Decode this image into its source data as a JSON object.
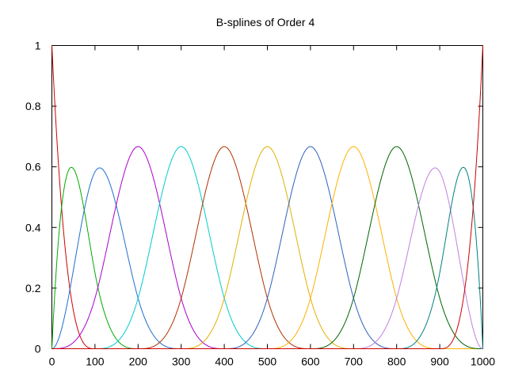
{
  "chart_data": {
    "type": "line",
    "title": "B-splines of Order 4",
    "xlabel": "",
    "ylabel": "",
    "xlim": [
      0,
      1000
    ],
    "ylim": [
      0,
      1
    ],
    "grid": false,
    "x_ticks": [
      "0",
      "100",
      "200",
      "300",
      "400",
      "500",
      "600",
      "700",
      "800",
      "900",
      "1000"
    ],
    "y_ticks": [
      "0",
      "0.2",
      "0.4",
      "0.6",
      "0.8",
      "1"
    ],
    "knots": [
      0,
      0,
      0,
      0,
      100,
      200,
      300,
      400,
      500,
      600,
      700,
      800,
      900,
      1000,
      1000,
      1000,
      1000
    ],
    "order": 4,
    "series": [
      {
        "peak_x": 0,
        "peak_y": 1.0,
        "color": "#cc0000"
      },
      {
        "peak_x": 45,
        "peak_y": 0.597,
        "color": "#00aa00"
      },
      {
        "peak_x": 111,
        "peak_y": 0.597,
        "color": "#1f6fd0"
      },
      {
        "peak_x": 200,
        "peak_y": 0.667,
        "color": "#aa00cc"
      },
      {
        "peak_x": 300,
        "peak_y": 0.667,
        "color": "#00cccc"
      },
      {
        "peak_x": 400,
        "peak_y": 0.667,
        "color": "#b03000"
      },
      {
        "peak_x": 500,
        "peak_y": 0.667,
        "color": "#e0b000"
      },
      {
        "peak_x": 600,
        "peak_y": 0.667,
        "color": "#2f5fc0"
      },
      {
        "peak_x": 700,
        "peak_y": 0.667,
        "color": "#ffb000"
      },
      {
        "peak_x": 800,
        "peak_y": 0.667,
        "color": "#006400"
      },
      {
        "peak_x": 889,
        "peak_y": 0.597,
        "color": "#c080e0"
      },
      {
        "peak_x": 955,
        "peak_y": 0.597,
        "color": "#008080"
      },
      {
        "peak_x": 1000,
        "peak_y": 1.0,
        "color": "#cc0000"
      }
    ]
  }
}
